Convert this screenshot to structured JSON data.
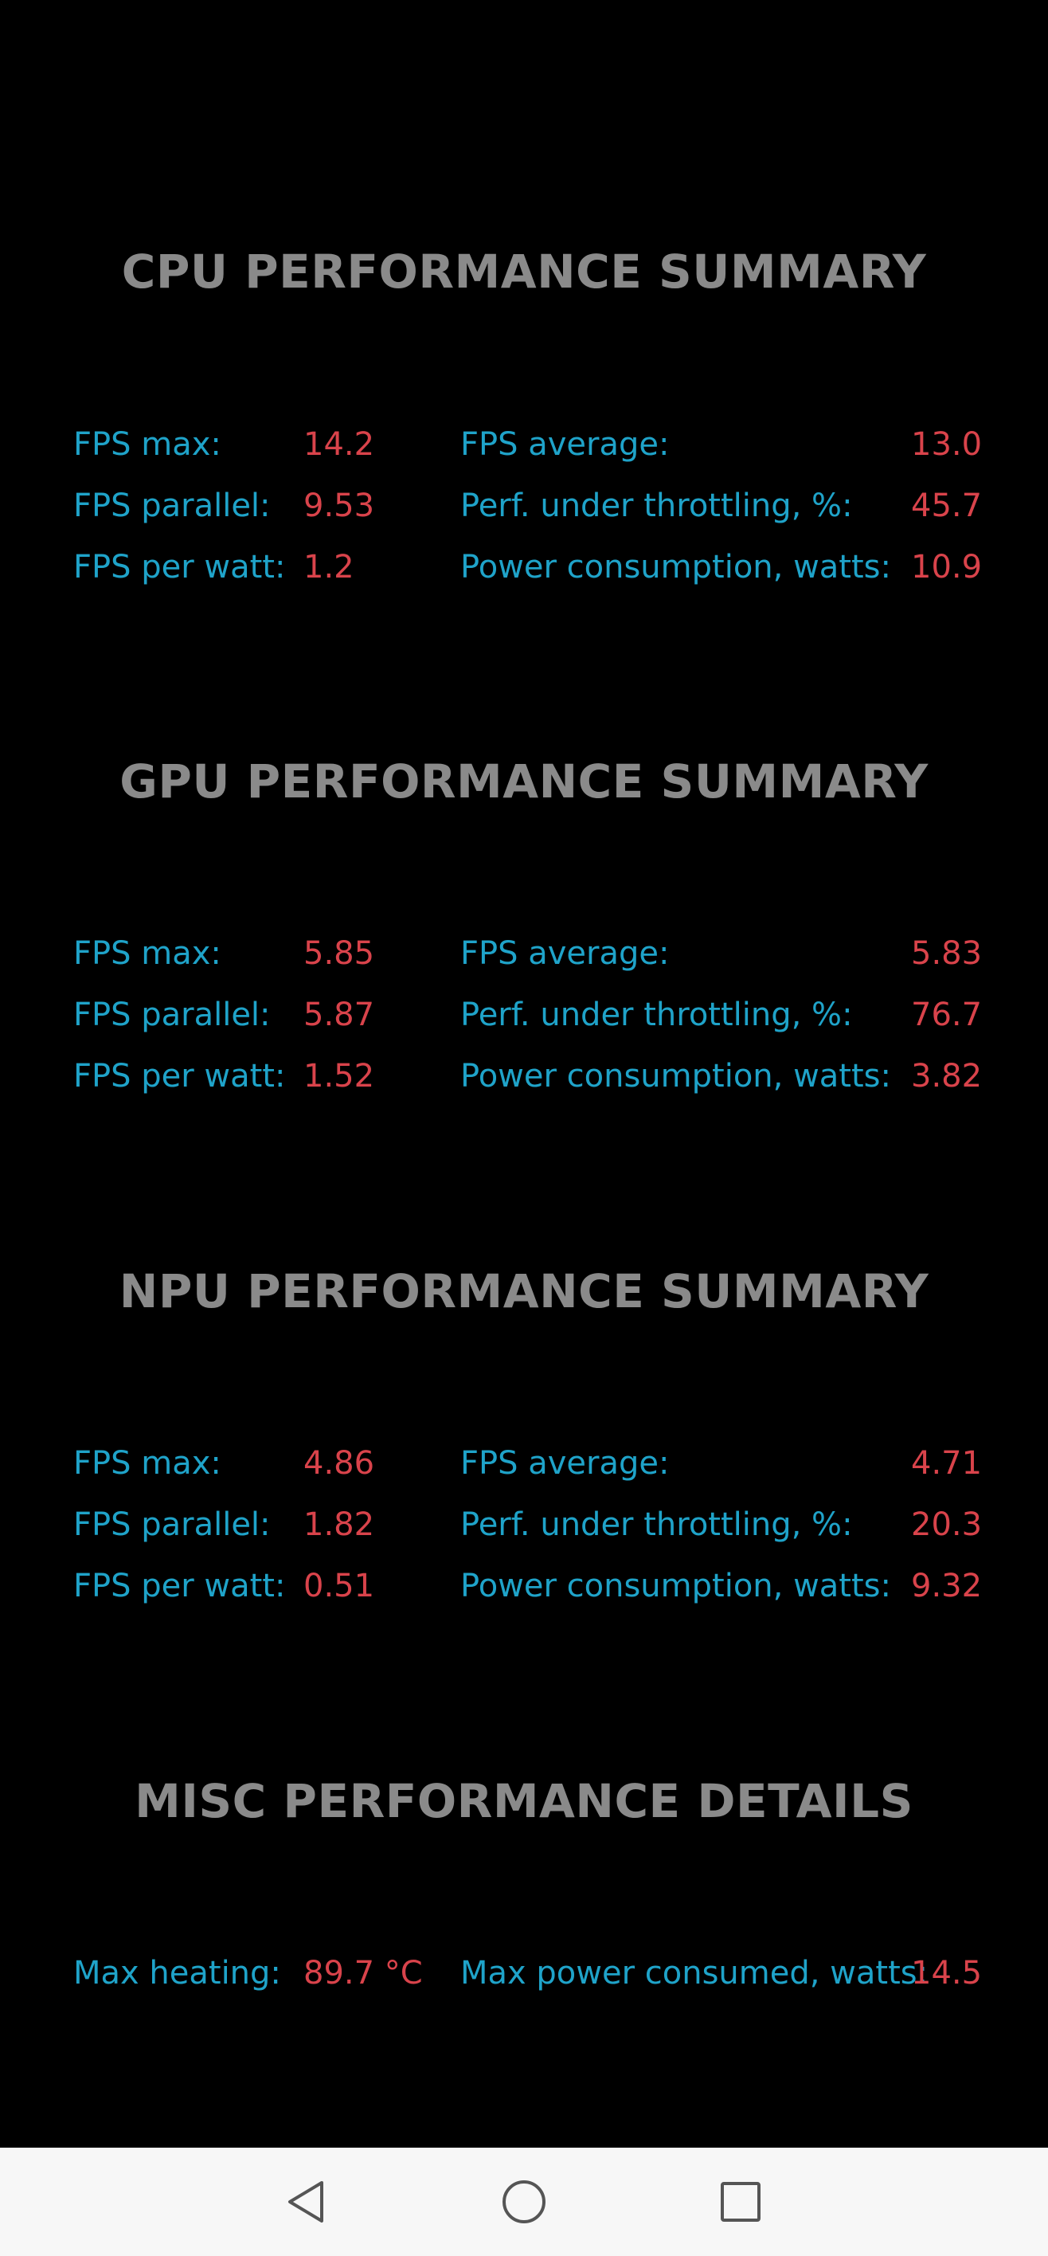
{
  "cpu": {
    "title": "CPU PERFORMANCE SUMMARY",
    "fps_max_label": "FPS max:",
    "fps_max_value": "14.2",
    "fps_parallel_label": "FPS parallel:",
    "fps_parallel_value": "9.53",
    "fps_per_watt_label": "FPS per watt:",
    "fps_per_watt_value": "1.2",
    "fps_average_label": "FPS average:",
    "fps_average_value": "13.0",
    "throttling_label": "Perf. under throttling, %:",
    "throttling_value": "45.7",
    "power_label": "Power consumption, watts:",
    "power_value": "10.9"
  },
  "gpu": {
    "title": "GPU PERFORMANCE SUMMARY",
    "fps_max_label": "FPS max:",
    "fps_max_value": "5.85",
    "fps_parallel_label": "FPS parallel:",
    "fps_parallel_value": "5.87",
    "fps_per_watt_label": "FPS per watt:",
    "fps_per_watt_value": "1.52",
    "fps_average_label": "FPS average:",
    "fps_average_value": "5.83",
    "throttling_label": "Perf. under throttling, %:",
    "throttling_value": "76.7",
    "power_label": "Power consumption, watts:",
    "power_value": "3.82"
  },
  "npu": {
    "title": "NPU PERFORMANCE SUMMARY",
    "fps_max_label": "FPS max:",
    "fps_max_value": "4.86",
    "fps_parallel_label": "FPS parallel:",
    "fps_parallel_value": "1.82",
    "fps_per_watt_label": "FPS per watt:",
    "fps_per_watt_value": "0.51",
    "fps_average_label": "FPS average:",
    "fps_average_value": "4.71",
    "throttling_label": "Perf. under throttling, %:",
    "throttling_value": "20.3",
    "power_label": "Power consumption, watts:",
    "power_value": "9.32"
  },
  "misc": {
    "title": "MISC PERFORMANCE DETAILS",
    "max_heating_label": "Max heating:",
    "max_heating_value": "89.7 °C",
    "max_power_label": "Max power consumed, watts:",
    "max_power_value": "14.5"
  },
  "navbar": {
    "back_icon": "back-triangle-icon",
    "home_icon": "home-circle-icon",
    "recents_icon": "recents-square-icon"
  },
  "colors": {
    "background": "#000000",
    "title": "#8a8a8a",
    "label": "#1fa3c9",
    "value": "#d9434b",
    "navbar": "#f7f7f7"
  }
}
